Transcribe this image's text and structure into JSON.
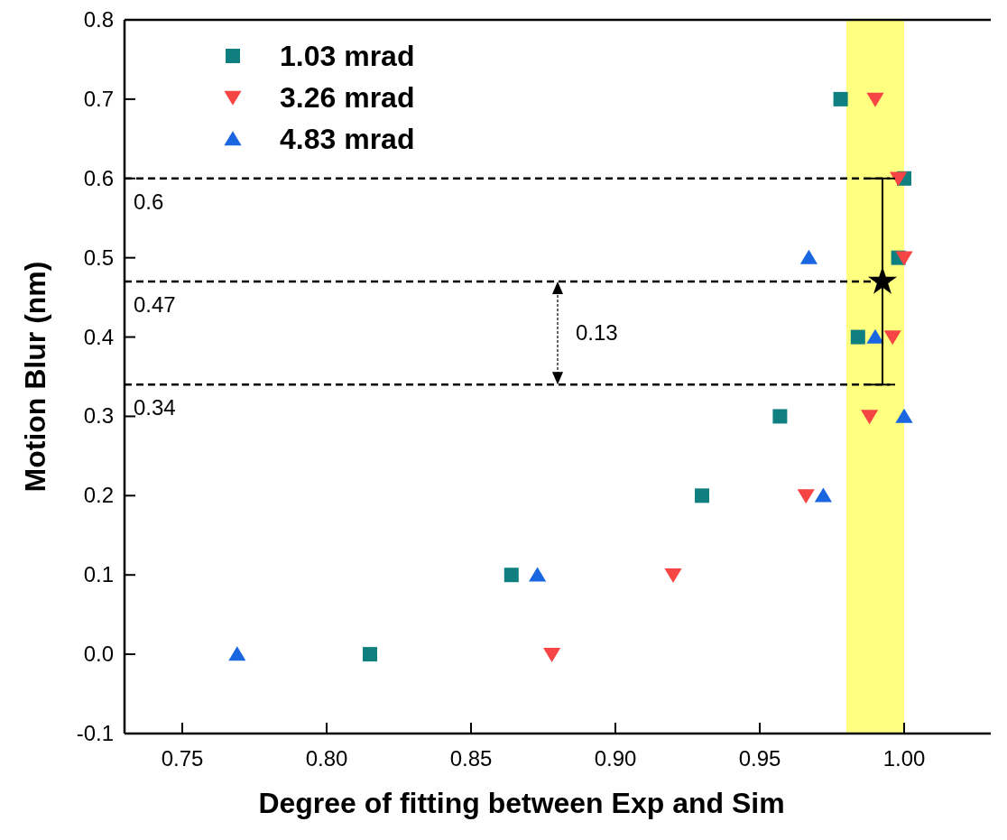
{
  "chart_data": {
    "type": "scatter",
    "xlabel": "Degree of fitting between Exp and Sim",
    "ylabel": "Motion Blur (nm)",
    "xlim": [
      0.73,
      1.03
    ],
    "xticks": [
      {
        "value": 0.75,
        "label": "0.75"
      },
      {
        "value": 0.8,
        "label": "0.80"
      },
      {
        "value": 0.85,
        "label": "0.85"
      },
      {
        "value": 0.9,
        "label": "0.90"
      },
      {
        "value": 0.95,
        "label": "0.95"
      },
      {
        "value": 1.0,
        "label": "1.00"
      }
    ],
    "ylim": [
      -0.1,
      0.8
    ],
    "yticks": [
      -0.1,
      {
        "value": 0,
        "label": "0.0"
      },
      0.1,
      0.2,
      0.3,
      0.4,
      0.5,
      0.6,
      0.7,
      0.8
    ],
    "grid": false,
    "legend": "top left",
    "series": [
      {
        "name": "1.03 mrad",
        "color": "#0f7f7f",
        "marker": "square",
        "x": [
          0.978,
          1.0,
          0.998,
          0.984,
          0.957,
          0.93,
          0.864,
          0.815
        ],
        "values": [
          0.7,
          0.6,
          0.5,
          0.4,
          0.3,
          0.2,
          0.1,
          0.0
        ]
      },
      {
        "name": "3.26 mrad",
        "color": "#f54545",
        "marker": "triangle-down",
        "x": [
          0.99,
          0.998,
          1.0,
          0.996,
          0.988,
          0.966,
          0.92,
          0.878
        ],
        "values": [
          0.7,
          0.6,
          0.5,
          0.4,
          0.3,
          0.2,
          0.1,
          0.0
        ]
      },
      {
        "name": "4.83 mrad",
        "color": "#1a66e0",
        "marker": "triangle",
        "x": [
          0.967,
          0.99,
          1.0,
          0.972,
          0.873,
          0.769
        ],
        "values": [
          0.5,
          0.4,
          0.3,
          0.2,
          0.1,
          0.0
        ]
      },
      {
        "color": "#000000",
        "marker": "star",
        "x": [
          0.9925
        ],
        "values": [
          0.47
        ],
        "errors": [
          0.13
        ]
      }
    ],
    "ref_lines": [
      {
        "axis": "y",
        "value": 0.6,
        "label": "0.6",
        "color": "#000000",
        "line_style": "dashed"
      },
      {
        "axis": "y",
        "value": 0.47,
        "label": "0.47",
        "color": "#000000",
        "line_style": "dashed"
      },
      {
        "axis": "y",
        "value": 0.34,
        "label": "0.34",
        "color": "#000000",
        "line_style": "dashed"
      }
    ],
    "bands": [
      {
        "axis": "x",
        "from": 0.98,
        "to": 1.0,
        "color": "#ffff80"
      }
    ],
    "annotations": [
      "0.13"
    ]
  }
}
